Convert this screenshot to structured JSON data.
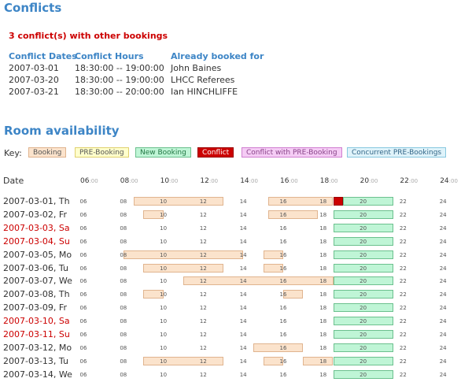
{
  "conflicts": {
    "title": "Conflicts",
    "count_text": "3 conflict(s) with other bookings",
    "headers": [
      "Conflict Dates",
      "Conflict Hours",
      "Already booked for"
    ],
    "rows": [
      {
        "date": "2007-03-01",
        "hours": "18:30:00 -- 19:00:00",
        "booked_for": "John Baines"
      },
      {
        "date": "2007-03-20",
        "hours": "18:30:00 -- 19:00:00",
        "booked_for": "LHCC Referees"
      },
      {
        "date": "2007-03-21",
        "hours": "18:30:00 -- 20:00:00",
        "booked_for": "Ian HINCHLIFFE"
      }
    ]
  },
  "availability": {
    "title": "Room availability",
    "key_label": "Key:",
    "key_items": [
      {
        "label": "Booking",
        "bg": "#fbe3cc",
        "border": "#e0b48f",
        "color": "#555555"
      },
      {
        "label": "PRE-Booking",
        "bg": "#ffffcc",
        "border": "#e0d070",
        "color": "#555555"
      },
      {
        "label": "New Booking",
        "bg": "#bff5d6",
        "border": "#6cc08e",
        "color": "#227744"
      },
      {
        "label": "Conflict",
        "bg": "#cc0000",
        "border": "#990000",
        "color": "#ffffff"
      },
      {
        "label": "Conflict with PRE-Booking",
        "bg": "#f5ccf5",
        "border": "#d080d0",
        "color": "#884488"
      },
      {
        "label": "Concurrent PRE-Bookings",
        "bg": "#dff3fa",
        "border": "#88c8e0",
        "color": "#336688"
      }
    ],
    "date_header": "Date",
    "hour_ticks": [
      "06",
      "08",
      "10",
      "12",
      "14",
      "16",
      "18",
      "20",
      "22",
      "24"
    ],
    "minutes_suffix": ":00",
    "row_hours": [
      "06",
      "08",
      "10",
      "12",
      "14",
      "16",
      "18",
      "20",
      "22",
      "24"
    ],
    "days": [
      {
        "label": "2007-03-01, Th",
        "weekend": false,
        "bookings": [
          [
            8.5,
            13
          ],
          [
            15.25,
            18.5
          ]
        ],
        "conflicts": [
          [
            18.5,
            19
          ]
        ],
        "new": [
          [
            19,
            21.5
          ]
        ]
      },
      {
        "label": "2007-03-02, Fr",
        "weekend": false,
        "bookings": [
          [
            9,
            10
          ],
          [
            15.25,
            17.75
          ]
        ],
        "conflicts": [],
        "new": [
          [
            18.5,
            21.5
          ]
        ]
      },
      {
        "label": "2007-03-03, Sa",
        "weekend": true,
        "bookings": [],
        "conflicts": [],
        "new": [
          [
            18.5,
            21.5
          ]
        ]
      },
      {
        "label": "2007-03-04, Su",
        "weekend": true,
        "bookings": [],
        "conflicts": [],
        "new": [
          [
            18.5,
            21.5
          ]
        ]
      },
      {
        "label": "2007-03-05, Mo",
        "weekend": false,
        "bookings": [
          [
            8,
            14
          ],
          [
            15,
            16
          ]
        ],
        "conflicts": [],
        "new": [
          [
            18.5,
            21.5
          ]
        ]
      },
      {
        "label": "2007-03-06, Tu",
        "weekend": false,
        "bookings": [
          [
            9,
            13
          ],
          [
            15,
            16
          ]
        ],
        "conflicts": [],
        "new": [
          [
            18.5,
            21.5
          ]
        ]
      },
      {
        "label": "2007-03-07, We",
        "weekend": false,
        "bookings": [
          [
            11,
            18.5
          ]
        ],
        "conflicts": [],
        "new": [
          [
            18.5,
            21.5
          ]
        ]
      },
      {
        "label": "2007-03-08, Th",
        "weekend": false,
        "bookings": [
          [
            9,
            10
          ],
          [
            16,
            17
          ]
        ],
        "conflicts": [],
        "new": [
          [
            18.5,
            21.5
          ]
        ]
      },
      {
        "label": "2007-03-09, Fr",
        "weekend": false,
        "bookings": [],
        "conflicts": [],
        "new": [
          [
            18.5,
            21.5
          ]
        ]
      },
      {
        "label": "2007-03-10, Sa",
        "weekend": true,
        "bookings": [],
        "conflicts": [],
        "new": [
          [
            18.5,
            21.5
          ]
        ]
      },
      {
        "label": "2007-03-11, Su",
        "weekend": true,
        "bookings": [],
        "conflicts": [],
        "new": [
          [
            18.5,
            21.5
          ]
        ]
      },
      {
        "label": "2007-03-12, Mo",
        "weekend": false,
        "bookings": [
          [
            14.5,
            17
          ]
        ],
        "conflicts": [],
        "new": [
          [
            18.5,
            21.5
          ]
        ]
      },
      {
        "label": "2007-03-13, Tu",
        "weekend": false,
        "bookings": [
          [
            9,
            13
          ],
          [
            15,
            16
          ],
          [
            17,
            18.5
          ]
        ],
        "conflicts": [],
        "new": [
          [
            18.5,
            21.5
          ]
        ]
      },
      {
        "label": "2007-03-14, We",
        "weekend": false,
        "bookings": [],
        "conflicts": [],
        "new": [
          [
            18.5,
            21.5
          ]
        ]
      }
    ]
  }
}
